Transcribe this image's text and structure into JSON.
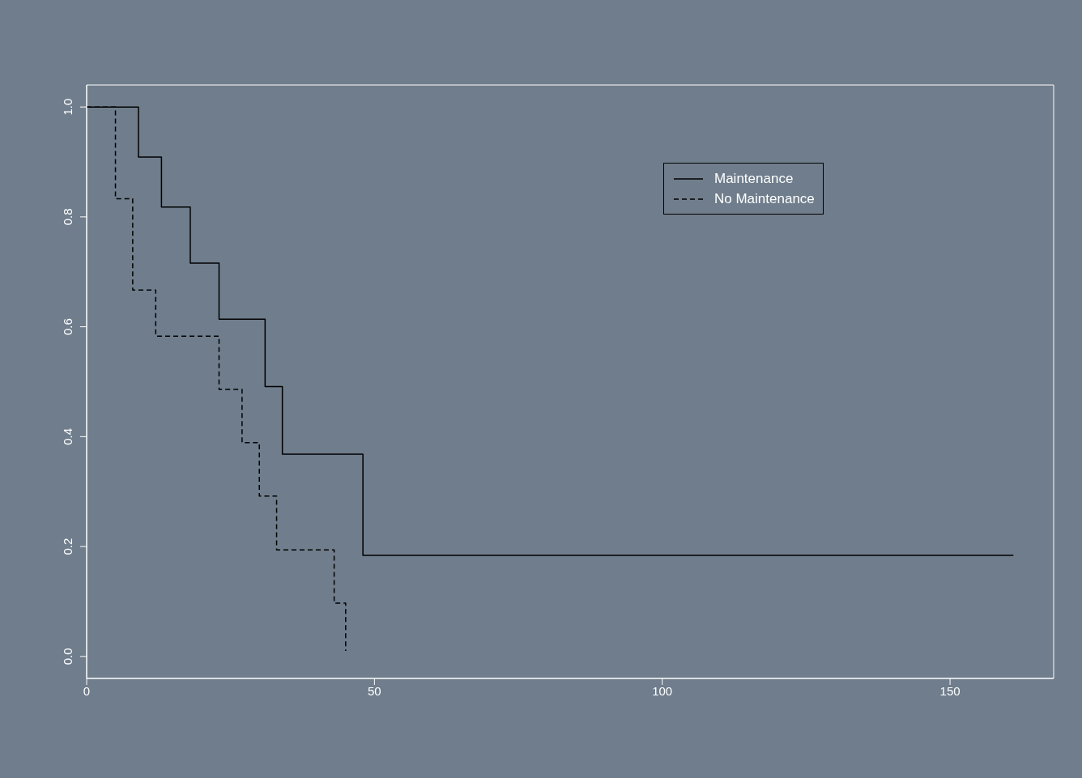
{
  "chart_data": {
    "type": "step",
    "series": [
      {
        "name": "Maintenance",
        "color": "#000000",
        "line_style": "solid",
        "x": [
          0,
          9,
          13,
          18,
          23,
          31,
          34,
          48,
          161
        ],
        "values": [
          1,
          0.909,
          0.818,
          0.716,
          0.614,
          0.491,
          0.368,
          0.184,
          0.184
        ]
      },
      {
        "name": "No Maintenance",
        "color": "#000000",
        "line_style": "dashed",
        "x": [
          0,
          5,
          8,
          12,
          23,
          27,
          30,
          33,
          43,
          45
        ],
        "values": [
          1,
          0.833,
          0.667,
          0.583,
          0.486,
          0.389,
          0.292,
          0.194,
          0.097,
          0.01
        ]
      }
    ],
    "xlim": [
      0,
      168
    ],
    "xticks": [
      0,
      50,
      100,
      150
    ],
    "ylim": [
      -0.04,
      1.04
    ],
    "yticks": [
      {
        "value": 0,
        "label": "0.0"
      },
      0.2,
      0.4,
      0.6,
      0.8,
      {
        "value": 1,
        "label": "1.0"
      }
    ],
    "legend": "top right"
  }
}
